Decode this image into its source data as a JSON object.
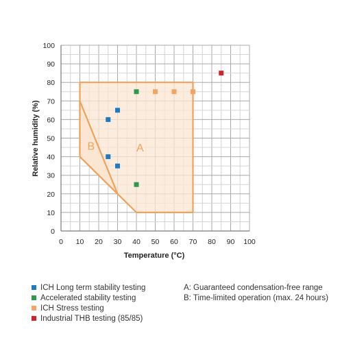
{
  "chart_data": {
    "type": "scatter",
    "xlabel": "Temperature (°C)",
    "ylabel": "Relative humidity (%)",
    "xlim": [
      0,
      100
    ],
    "ylim": [
      0,
      100
    ],
    "x_ticks": [
      "0",
      "10",
      "20",
      "30",
      "40",
      "50",
      "60",
      "70",
      "80",
      "90",
      "100"
    ],
    "y_ticks": [
      "0",
      "10",
      "20",
      "30",
      "40",
      "50",
      "60",
      "70",
      "80",
      "90",
      "100"
    ],
    "grid": true,
    "regions": [
      {
        "label": "A",
        "label_at": [
          40,
          45
        ],
        "points": [
          [
            10,
            80
          ],
          [
            70,
            80
          ],
          [
            70,
            10
          ],
          [
            40,
            10
          ],
          [
            30,
            20
          ],
          [
            10,
            40
          ]
        ]
      },
      {
        "label": "B",
        "label_at": [
          14,
          46
        ],
        "points": [
          [
            10,
            70
          ],
          [
            30,
            20
          ],
          [
            10,
            40
          ]
        ]
      }
    ],
    "series": [
      {
        "name": "ICH Long term stability testing",
        "color": "#1f7bc1",
        "points": [
          [
            25,
            60
          ],
          [
            30,
            65
          ],
          [
            25,
            40
          ],
          [
            30,
            35
          ]
        ]
      },
      {
        "name": "Accelerated stability testing",
        "color": "#2e9a49",
        "points": [
          [
            40,
            75
          ],
          [
            40,
            25
          ]
        ]
      },
      {
        "name": "ICH Stress testing",
        "color": "#f4a460",
        "points": [
          [
            50,
            75
          ],
          [
            60,
            75
          ],
          [
            70,
            75
          ]
        ]
      },
      {
        "name": "Industrial THB testing (85/85)",
        "color": "#d2232a",
        "points": [
          [
            85,
            85
          ]
        ]
      }
    ],
    "region_colors": {
      "stroke": "#f0a15a",
      "fill": "#fbe5d2",
      "label": "#f0a15a"
    },
    "notes": [
      "A: Guaranteed condensation-free range",
      "B: Time-limited operation (max. 24 hours)"
    ]
  }
}
